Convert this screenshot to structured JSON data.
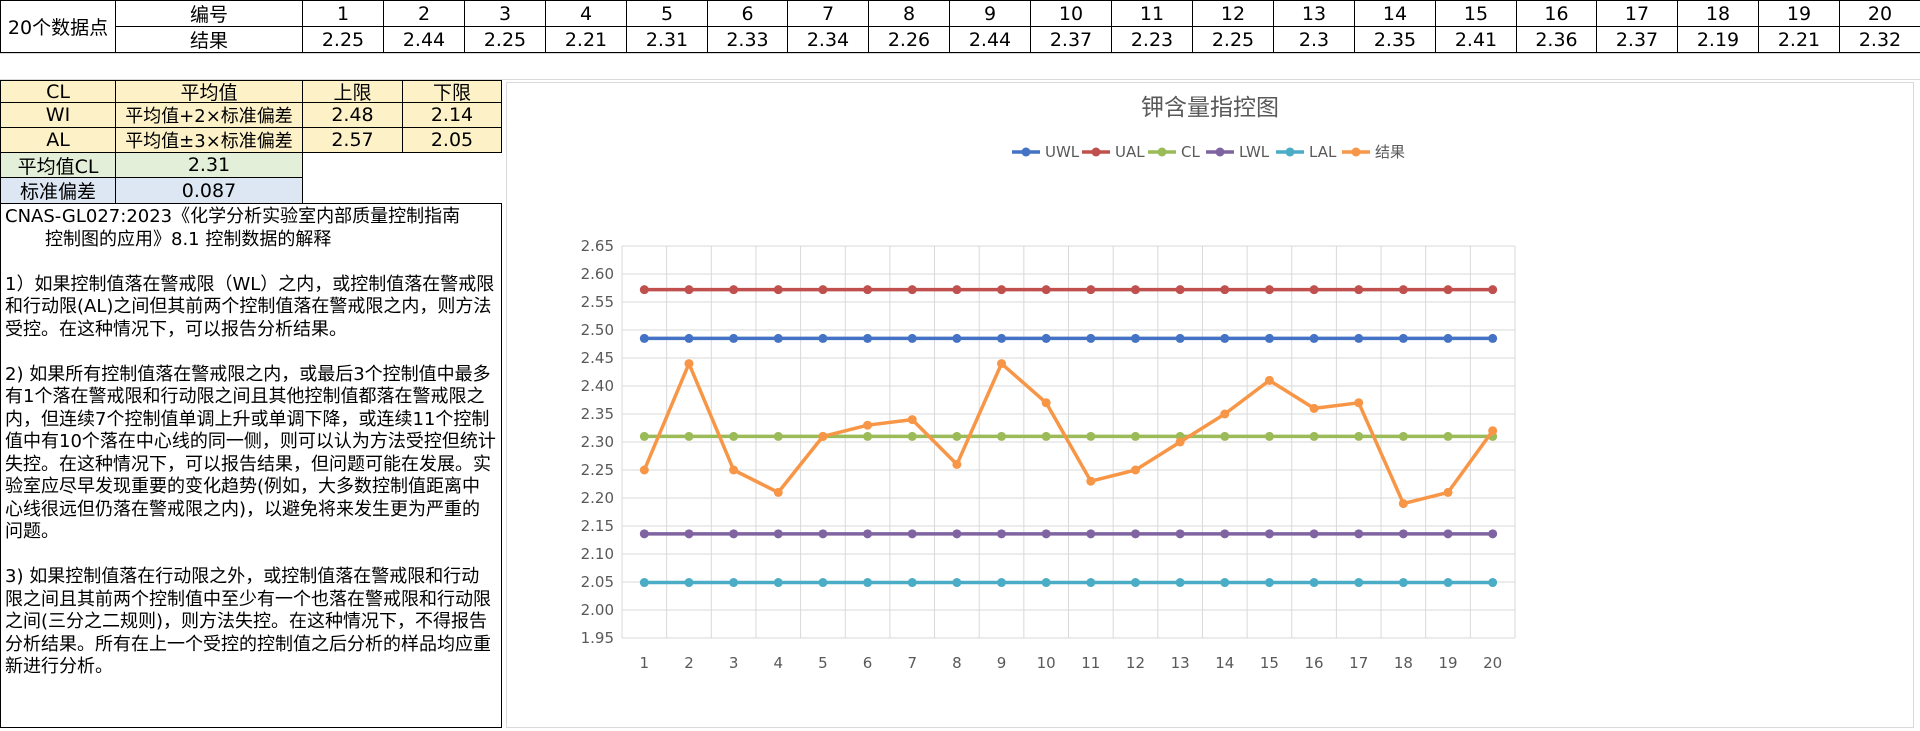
{
  "table": {
    "title_cell": "20个数据点",
    "row1_label": "编号",
    "row2_label": "结果",
    "numbers": [
      "1",
      "2",
      "3",
      "4",
      "5",
      "6",
      "7",
      "8",
      "9",
      "10",
      "11",
      "12",
      "13",
      "14",
      "15",
      "16",
      "17",
      "18",
      "19",
      "20"
    ],
    "results": [
      "2.25",
      "2.44",
      "2.25",
      "2.21",
      "2.31",
      "2.33",
      "2.34",
      "2.26",
      "2.44",
      "2.37",
      "2.23",
      "2.25",
      "2.3",
      "2.35",
      "2.41",
      "2.36",
      "2.37",
      "2.19",
      "2.21",
      "2.32"
    ]
  },
  "limits": {
    "headers": [
      "CL",
      "平均值",
      "上限",
      "下限"
    ],
    "rows": [
      {
        "name": "WI",
        "formula": "平均值+2×标准偏差",
        "upper": "2.48",
        "lower": "2.14"
      },
      {
        "name": "AL",
        "formula": "平均值±3×标准偏差",
        "upper": "2.57",
        "lower": "2.05"
      }
    ],
    "mean_label": "平均值CL",
    "mean_value": "2.31",
    "std_label": "标准偏差",
    "std_value": "0.087"
  },
  "notes": {
    "ref1": "CNAS-GL027:2023《化学分析实验室内部质量控制指南",
    "ref2": "控制图的应用》8.1 控制数据的解释",
    "p1": "1）如果控制值落在警戒限（WL）之内，或控制值落在警戒限和行动限(AL)之间但其前两个控制值落在警戒限之内，则方法受控。在这种情况下，可以报告分析结果。",
    "p2": "2) 如果所有控制值落在警戒限之内，或最后3个控制值中最多有1个落在警戒限和行动限之间且其他控制值都落在警戒限之内，但连续7个控制值单调上升或单调下降，或连续11个控制值中有10个落在中心线的同一侧，则可以认为方法受控但统计失控。在这种情况下，可以报告结果，但问题可能在发展。实验室应尽早发现重要的变化趋势(例如，大多数控制值距离中心线很远但仍落在警戒限之内)，以避免将来发生更为严重的问题。",
    "p3": "3) 如果控制值落在行动限之外，或控制值落在警戒限和行动限之间且其前两个控制值中至少有一个也落在警戒限和行动限之间(三分之二规则)，则方法失控。在这种情况下，不得报告分析结果。所有在上一个受控的控制值之后分析的样品均应重新进行分析。"
  },
  "chart_data": {
    "type": "line",
    "title": "钾含量指控图",
    "legend_position": "top",
    "grid": true,
    "categories": [
      1,
      2,
      3,
      4,
      5,
      6,
      7,
      8,
      9,
      10,
      11,
      12,
      13,
      14,
      15,
      16,
      17,
      18,
      19,
      20
    ],
    "ylim": [
      1.95,
      2.65
    ],
    "ytick_step": 0.05,
    "series": [
      {
        "name": "UWL",
        "color": "#4472c4",
        "values": [
          2.485,
          2.485,
          2.485,
          2.485,
          2.485,
          2.485,
          2.485,
          2.485,
          2.485,
          2.485,
          2.485,
          2.485,
          2.485,
          2.485,
          2.485,
          2.485,
          2.485,
          2.485,
          2.485,
          2.485
        ]
      },
      {
        "name": "UAL",
        "color": "#c0504d",
        "values": [
          2.572,
          2.572,
          2.572,
          2.572,
          2.572,
          2.572,
          2.572,
          2.572,
          2.572,
          2.572,
          2.572,
          2.572,
          2.572,
          2.572,
          2.572,
          2.572,
          2.572,
          2.572,
          2.572,
          2.572
        ]
      },
      {
        "name": "CL",
        "color": "#9bbb59",
        "values": [
          2.31,
          2.31,
          2.31,
          2.31,
          2.31,
          2.31,
          2.31,
          2.31,
          2.31,
          2.31,
          2.31,
          2.31,
          2.31,
          2.31,
          2.31,
          2.31,
          2.31,
          2.31,
          2.31,
          2.31
        ]
      },
      {
        "name": "LWL",
        "color": "#8064a2",
        "values": [
          2.136,
          2.136,
          2.136,
          2.136,
          2.136,
          2.136,
          2.136,
          2.136,
          2.136,
          2.136,
          2.136,
          2.136,
          2.136,
          2.136,
          2.136,
          2.136,
          2.136,
          2.136,
          2.136,
          2.136
        ]
      },
      {
        "name": "LAL",
        "color": "#4bacc6",
        "values": [
          2.049,
          2.049,
          2.049,
          2.049,
          2.049,
          2.049,
          2.049,
          2.049,
          2.049,
          2.049,
          2.049,
          2.049,
          2.049,
          2.049,
          2.049,
          2.049,
          2.049,
          2.049,
          2.049,
          2.049
        ]
      },
      {
        "name": "结果",
        "color": "#f79646",
        "values": [
          2.25,
          2.44,
          2.25,
          2.21,
          2.31,
          2.33,
          2.34,
          2.26,
          2.44,
          2.37,
          2.23,
          2.25,
          2.3,
          2.35,
          2.41,
          2.36,
          2.37,
          2.19,
          2.21,
          2.32
        ]
      }
    ]
  }
}
